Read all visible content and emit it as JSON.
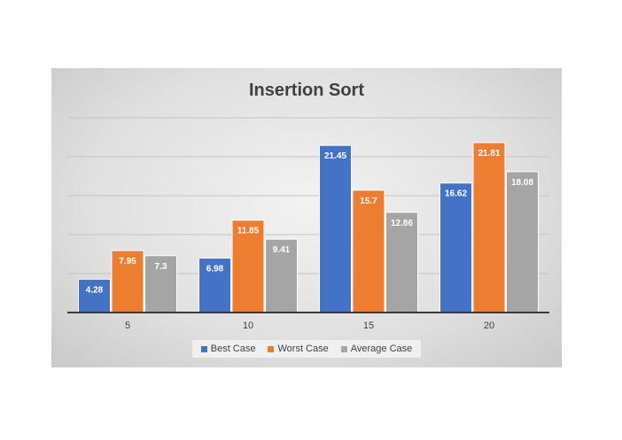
{
  "chart_data": {
    "type": "bar",
    "title": "Insertion Sort",
    "categories": [
      "5",
      "10",
      "15",
      "20"
    ],
    "series": [
      {
        "name": "Best Case",
        "color": "#4472c4",
        "values": [
          4.28,
          6.98,
          21.45,
          16.62
        ]
      },
      {
        "name": "Worst Case",
        "color": "#ed7d31",
        "values": [
          7.95,
          11.85,
          15.7,
          21.81
        ]
      },
      {
        "name": "Average Case",
        "color": "#a5a5a5",
        "values": [
          7.3,
          9.41,
          12.86,
          18.08
        ]
      }
    ],
    "xlabel": "",
    "ylabel": "",
    "ylim": [
      0,
      25
    ],
    "grid": true,
    "legend": "bottom"
  }
}
